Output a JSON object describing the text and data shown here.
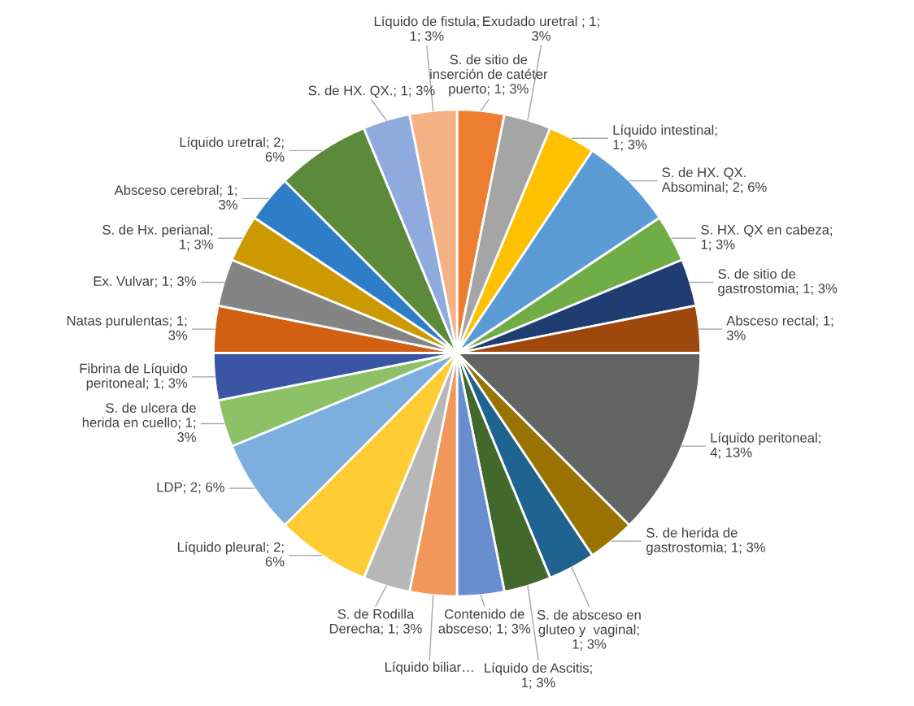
{
  "chart_data": {
    "type": "pie",
    "categories": [
      "S. de sitio de inserción de catéter puerto; 1; 3%",
      "Exudado uretral ; 1; 3%",
      "Líquido intestinal; 1; 3%",
      "S. de HX. QX. Absominal; 2; 6%",
      "S. HX. QX en cabeza; 1; 3%",
      "S. de sitio de gastrostomia; 1; 3%",
      "Absceso rectal; 1; 3%",
      "Líquido peritoneal; 4; 13%",
      "S. de herida de gastrostomia; 1; 3%",
      "S. de absceso en gluteo y  vaginal; 1; 3%",
      "Líquido de Ascitis; 1; 3%",
      "Contenido de absceso; 1; 3%",
      "Líquido biliar…",
      "S. de Rodilla Derecha; 1; 3%",
      "Líquido pleural; 2; 6%",
      "LDP; 2; 6%",
      "S. de ulcera de herida en cuello; 1; 3%",
      "Fibrina de Líquido peritoneal; 1; 3%",
      "Natas purulentas; 1; 3%",
      "Ex. Vulvar; 1; 3%",
      "S. de Hx. perianal; 1; 3%",
      "Absceso cerebral; 1; 3%",
      "Líquido uretral; 2; 6%",
      "S. de HX. QX.; 1; 3%",
      "Líquido de fistula; 1; 3%"
    ],
    "values": [
      1,
      1,
      1,
      2,
      1,
      1,
      1,
      4,
      1,
      1,
      1,
      1,
      1,
      1,
      2,
      2,
      1,
      1,
      1,
      1,
      1,
      1,
      2,
      1,
      1
    ],
    "colors": [
      "#ed7d31",
      "#a5a5a5",
      "#ffc000",
      "#5b9bd5",
      "#70ad47",
      "#1f3d70",
      "#9e480e",
      "#636363",
      "#997300",
      "#1f6391",
      "#43682b",
      "#698ed0",
      "#f1975a",
      "#b7b7b7",
      "#ffcd33",
      "#7cafdd",
      "#8cc168",
      "#3a55a4",
      "#d26012",
      "#848484",
      "#cc9a00",
      "#2f7dc6",
      "#5a8a3a",
      "#8faadc",
      "#f4b183"
    ]
  }
}
